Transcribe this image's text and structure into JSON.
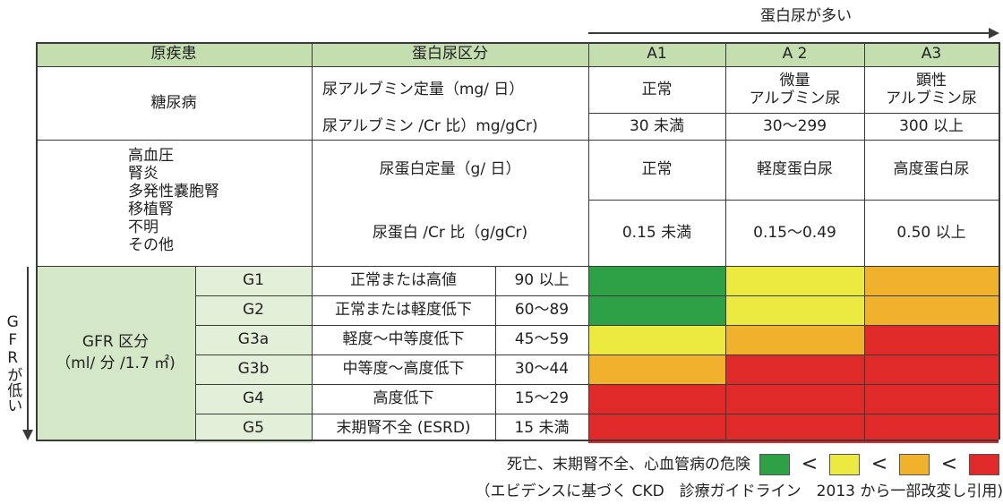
{
  "top_direction": "蛋白尿が多い",
  "left_direction": "GFRが低い",
  "header": {
    "col1": "原疾患",
    "col2": "蛋白尿区分",
    "a1": "A1",
    "a2": "A 2",
    "a3": "A3"
  },
  "diabetes": {
    "disease": "糖尿病",
    "measure1": "尿アルブミン定量（mg/ 日）",
    "measure2": "尿アルブミン /Cr 比）mg/gCr)",
    "a1_label": "正常",
    "a2_label": "微量\nアルブミン尿",
    "a3_label": "顕性\nアルブミン尿",
    "a1_range": "30 未満",
    "a2_range": "30〜299",
    "a3_range": "300 以上"
  },
  "other": {
    "diseases": "高血圧\n腎炎\n多発性嚢胞腎\n移植腎\n不明\nその他",
    "measure1": "尿蛋白定量（g/ 日）",
    "measure2": "尿蛋白 /Cr 比（g/gCr)",
    "a1_label": "正常",
    "a2_label": "軽度蛋白尿",
    "a3_label": "高度蛋白尿",
    "a1_range": "0.15 未満",
    "a2_range": "0.15〜0.49",
    "a3_range": "0.50 以上"
  },
  "gfr": {
    "label": "GFR 区分\n（ml/ 分 /1.7 ㎡)",
    "rows": [
      {
        "stage": "G1",
        "desc": "正常または高値",
        "range": "90 以上",
        "risk": [
          "green",
          "yellow",
          "orange"
        ]
      },
      {
        "stage": "G2",
        "desc": "正常または軽度低下",
        "range": "60〜89",
        "risk": [
          "green",
          "yellow",
          "orange"
        ]
      },
      {
        "stage": "G3a",
        "desc": "軽度〜中等度低下",
        "range": "45〜59",
        "risk": [
          "yellow",
          "orange",
          "red"
        ]
      },
      {
        "stage": "G3b",
        "desc": "中等度〜高度低下",
        "range": "30〜44",
        "risk": [
          "orange",
          "red",
          "red"
        ]
      },
      {
        "stage": "G4",
        "desc": "高度低下",
        "range": "15〜29",
        "risk": [
          "red",
          "red",
          "red"
        ]
      },
      {
        "stage": "G5",
        "desc": "末期腎不全 (ESRD)",
        "range": "15 未満",
        "risk": [
          "red",
          "red",
          "red"
        ]
      }
    ]
  },
  "legend": {
    "label": "死亡、末期腎不全、心血管病の危険",
    "lt": "<",
    "colors": [
      "green",
      "yellow",
      "orange",
      "red"
    ]
  },
  "source": "（エビデンスに基づく CKD　診療ガイドライン　2013 から一部改変し引用)",
  "palette": {
    "green": "#2ea046",
    "yellow": "#ece940",
    "orange": "#f0b12c",
    "red": "#e02a2a",
    "header_bg": "#c4deb0",
    "gfr_bg": "#d4e7c6"
  }
}
